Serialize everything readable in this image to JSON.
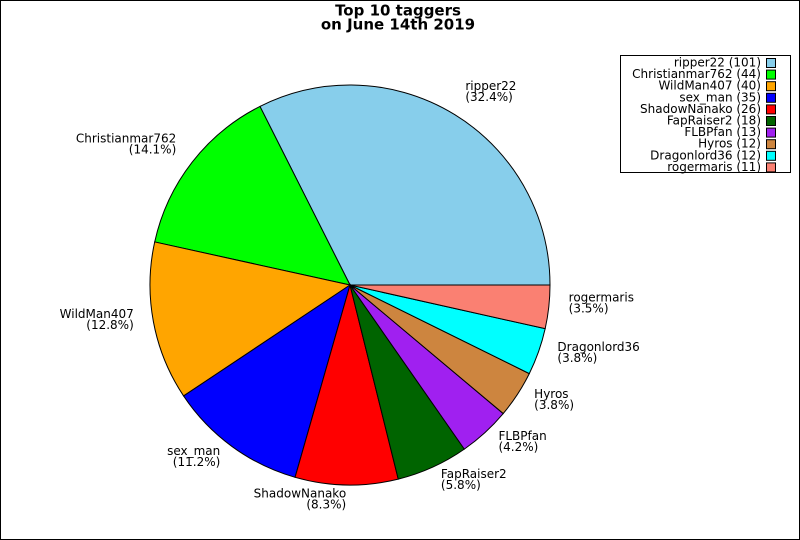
{
  "chart_data": {
    "type": "pie",
    "title": [
      "Top 10 taggers",
      "on June 14th 2019"
    ],
    "categories": [
      "ripper22",
      "Christianmar762",
      "WildMan407",
      "sex_man",
      "ShadowNanako",
      "FapRaiser2",
      "FLBPfan",
      "Hyros",
      "Dragonlord36",
      "rogermaris"
    ],
    "values": [
      32.4,
      14.1,
      12.8,
      11.2,
      8.3,
      5.8,
      4.2,
      3.8,
      3.8,
      3.5
    ],
    "value_labels": [
      "(32.4%)",
      "(14.1%)",
      "(12.8%)",
      "(11.2%)",
      "(8.3%)",
      "(5.8%)",
      "(4.2%)",
      "(3.8%)",
      "(3.8%)",
      "(3.5%)"
    ],
    "legend_labels": [
      "ripper22 (101)",
      "Christianmar762 (44)",
      "WildMan407 (40)",
      "sex_man (35)",
      "ShadowNanako (26)",
      "FapRaiser2 (18)",
      "FLBPfan (13)",
      "Hyros (12)",
      "Dragonlord36 (12)",
      "rogermaris (11)"
    ],
    "colors": [
      "#87ceeb",
      "#00ff00",
      "#ffa500",
      "#0000ff",
      "#ff0000",
      "#006400",
      "#a020f0",
      "#cd853f",
      "#00ffff",
      "#fa8072"
    ],
    "legend": "upper right"
  }
}
